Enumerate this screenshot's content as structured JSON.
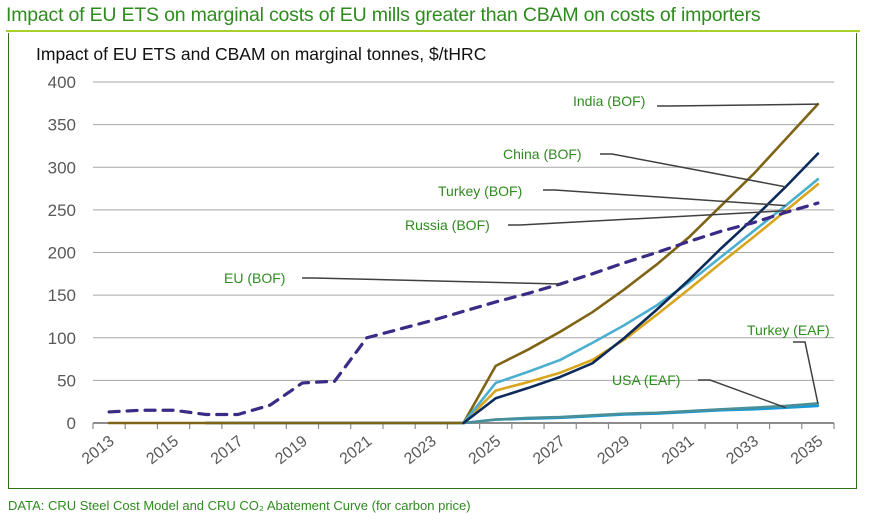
{
  "header": {
    "headline": "Impact of EU ETS on marginal costs of EU mills greater than CBAM on costs of importers",
    "source": "DATA: CRU Steel Cost Model and CRU CO₂ Abatement Curve (for carbon price)"
  },
  "chart_data": {
    "type": "line",
    "title": "Impact of EU ETS and CBAM on marginal tonnes, $/tHRC",
    "xlabel": "",
    "ylabel": "",
    "ylim": [
      0,
      400
    ],
    "yticks": [
      0,
      50,
      100,
      150,
      200,
      250,
      300,
      350,
      400
    ],
    "grid": true,
    "legend": "none (direct labels with leader lines)",
    "x": [
      2013,
      2014,
      2015,
      2016,
      2017,
      2018,
      2019,
      2020,
      2021,
      2022,
      2023,
      2024,
      2025,
      2026,
      2027,
      2028,
      2029,
      2030,
      2031,
      2032,
      2033,
      2034,
      2035
    ],
    "xtick_labels": [
      "2013",
      "2015",
      "2017",
      "2019",
      "2021",
      "2023",
      "2025",
      "2027",
      "2029",
      "2031",
      "2033",
      "2035"
    ],
    "series": [
      {
        "name": "EU (BOF)",
        "color": "#3b2a86",
        "dashed": true,
        "values": [
          13,
          15,
          15,
          10,
          10,
          21,
          47,
          49,
          100,
          110,
          120,
          131,
          142,
          152,
          163,
          175,
          188,
          200,
          213,
          225,
          235,
          247,
          258
        ]
      },
      {
        "name": "India (BOF)",
        "color": "#7f6415",
        "dashed": false,
        "values": [
          0,
          0,
          0,
          0,
          0,
          0,
          0,
          0,
          0,
          0,
          0,
          0,
          67,
          86,
          107,
          130,
          157,
          186,
          218,
          255,
          292,
          333,
          374
        ]
      },
      {
        "name": "China (BOF)",
        "color": "#0d2b5a",
        "dashed": false,
        "values": [
          null,
          null,
          null,
          null,
          null,
          null,
          null,
          null,
          null,
          null,
          null,
          0,
          29,
          41,
          54,
          70,
          100,
          133,
          168,
          205,
          240,
          277,
          316
        ]
      },
      {
        "name": "Turkey (BOF)",
        "color": "#4bafcf",
        "dashed": false,
        "values": [
          null,
          null,
          null,
          null,
          null,
          null,
          null,
          null,
          null,
          null,
          null,
          0,
          47,
          60,
          74,
          94,
          115,
          138,
          165,
          195,
          225,
          255,
          286
        ]
      },
      {
        "name": "Russia (BOF)",
        "color": "#d9a51a",
        "dashed": false,
        "values": [
          null,
          null,
          null,
          null,
          null,
          null,
          null,
          null,
          null,
          null,
          null,
          0,
          38,
          48,
          59,
          74,
          98,
          127,
          157,
          188,
          218,
          249,
          280
        ]
      },
      {
        "name": "Turkey (EAF)",
        "color": "#4a8f98",
        "dashed": false,
        "values": [
          null,
          null,
          null,
          0,
          0,
          0,
          0,
          0,
          0,
          0,
          0,
          0,
          4,
          6,
          7,
          9,
          11,
          12,
          14,
          16,
          18,
          20,
          23
        ]
      },
      {
        "name": "USA (EAF)",
        "color": "#1a9ad6",
        "dashed": false,
        "values": [
          null,
          null,
          null,
          0,
          0,
          0,
          0,
          0,
          0,
          0,
          0,
          0,
          4,
          5,
          6,
          8,
          10,
          11,
          13,
          15,
          16,
          18,
          20
        ]
      }
    ],
    "annotations": [
      {
        "text": "India (BOF)",
        "series": "India (BOF)",
        "year": 2035
      },
      {
        "text": "China (BOF)",
        "series": "China (BOF)",
        "year": 2034
      },
      {
        "text": "Turkey (BOF)",
        "series": "Turkey (BOF)",
        "year": 2034
      },
      {
        "text": "Russia (BOF)",
        "series": "Russia (BOF)",
        "year": 2034
      },
      {
        "text": "EU (BOF)",
        "series": "EU (BOF)",
        "year": 2027
      },
      {
        "text": "Turkey (EAF)",
        "series": "Turkey (EAF)",
        "year": 2035
      },
      {
        "text": "USA (EAF)",
        "series": "USA (EAF)",
        "year": 2034
      }
    ]
  }
}
